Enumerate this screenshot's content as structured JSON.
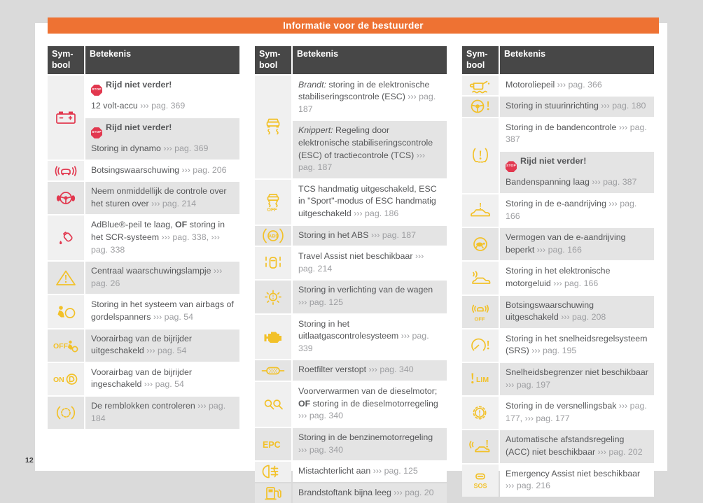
{
  "page": {
    "title": "Informatie voor de bestuurder",
    "page_number": "12"
  },
  "colors": {
    "accent_orange": "#ee7233",
    "header_gray": "#474747",
    "icon_red": "#e2384f",
    "icon_yellow": "#f2c129",
    "text_gray": "#57585a",
    "reference_gray": "#9d9ea1",
    "row_gray": "#e4e4e4",
    "symbol_cell_gray": "#f0f0f0",
    "canvas_gray": "#dadada"
  },
  "stop_badge_label": "STOP",
  "tables": [
    {
      "header": {
        "symbol": "Sym-\nbool",
        "betekenis": "Betekenis"
      },
      "rows": [
        {
          "icon": "battery-icon",
          "color": "red",
          "cells": [
            {
              "bg": "white",
              "paras": [
                [
                  {
                    "s": "stop"
                  },
                  {
                    "s": "b",
                    "t": "Rijd niet verder!"
                  }
                ],
                [
                  {
                    "s": "n",
                    "t": "12 volt-accu "
                  },
                  {
                    "s": "r",
                    "t": "››› pag. 369"
                  }
                ]
              ]
            },
            {
              "bg": "gray",
              "paras": [
                [
                  {
                    "s": "stop"
                  },
                  {
                    "s": "b",
                    "t": "Rijd niet verder!"
                  }
                ],
                [
                  {
                    "s": "n",
                    "t": "Storing in dynamo "
                  },
                  {
                    "s": "r",
                    "t": "››› pag. 369"
                  }
                ]
              ]
            }
          ]
        },
        {
          "icon": "collision-warning-icon",
          "color": "red",
          "cells": [
            {
              "bg": "white",
              "paras": [
                [
                  {
                    "s": "n",
                    "t": "Botsingswaarschuwing "
                  },
                  {
                    "s": "r",
                    "t": "››› pag. 206"
                  }
                ]
              ]
            }
          ]
        },
        {
          "icon": "hands-on-steering-icon",
          "color": "red",
          "cells": [
            {
              "bg": "gray",
              "paras": [
                [
                  {
                    "s": "n",
                    "t": "Neem onmiddellijk de controle over het sturen over "
                  },
                  {
                    "s": "r",
                    "t": "››› pag. 214"
                  }
                ]
              ]
            }
          ]
        },
        {
          "icon": "adblue-icon",
          "color": "red",
          "cells": [
            {
              "bg": "white",
              "paras": [
                [
                  {
                    "s": "n",
                    "t": "AdBlue®-peil te laag, "
                  },
                  {
                    "s": "b",
                    "t": "OF"
                  },
                  {
                    "s": "n",
                    "t": " storing in het SCR-systeem "
                  },
                  {
                    "s": "r",
                    "t": "››› pag. 338,"
                  },
                  {
                    "s": "n",
                    "t": " "
                  },
                  {
                    "s": "r",
                    "t": "››› pag. 338"
                  }
                ]
              ]
            }
          ]
        },
        {
          "icon": "warning-triangle-icon",
          "color": "yellow",
          "cells": [
            {
              "bg": "gray",
              "paras": [
                [
                  {
                    "s": "n",
                    "t": "Centraal waarschuwingslampje "
                  },
                  {
                    "s": "r",
                    "t": "››› pag. 26"
                  }
                ]
              ]
            }
          ]
        },
        {
          "icon": "airbag-icon",
          "color": "yellow",
          "cells": [
            {
              "bg": "white",
              "paras": [
                [
                  {
                    "s": "n",
                    "t": "Storing in het systeem van airbags of gordelspanners "
                  },
                  {
                    "s": "r",
                    "t": "››› pag. 54"
                  }
                ]
              ]
            }
          ]
        },
        {
          "icon": "airbag-off-icon",
          "color": "yellow",
          "cells": [
            {
              "bg": "gray",
              "paras": [
                [
                  {
                    "s": "n",
                    "t": "Voorairbag van de bijrijder uitgeschakeld "
                  },
                  {
                    "s": "r",
                    "t": "››› pag. 54"
                  }
                ]
              ]
            }
          ]
        },
        {
          "icon": "airbag-on-icon",
          "color": "yellow",
          "cells": [
            {
              "bg": "white",
              "paras": [
                [
                  {
                    "s": "n",
                    "t": "Voorairbag van de bijrijder ingeschakeld "
                  },
                  {
                    "s": "r",
                    "t": "››› pag. 54"
                  }
                ]
              ]
            }
          ]
        },
        {
          "icon": "brake-pads-icon",
          "color": "yellow",
          "cells": [
            {
              "bg": "gray",
              "paras": [
                [
                  {
                    "s": "n",
                    "t": "De remblokken controleren "
                  },
                  {
                    "s": "r",
                    "t": "››› pag. 184"
                  }
                ]
              ]
            }
          ]
        }
      ]
    },
    {
      "header": {
        "symbol": "Sym-\nbool",
        "betekenis": "Betekenis"
      },
      "rows": [
        {
          "icon": "esc-icon",
          "color": "yellow",
          "cells": [
            {
              "bg": "white",
              "paras": [
                [
                  {
                    "s": "i",
                    "t": "Brandt:"
                  },
                  {
                    "s": "n",
                    "t": " storing in de elektronische stabiliseringscontrole (ESC) "
                  },
                  {
                    "s": "r",
                    "t": "››› pag. 187"
                  }
                ]
              ]
            },
            {
              "bg": "gray",
              "paras": [
                [
                  {
                    "s": "i",
                    "t": "Knippert:"
                  },
                  {
                    "s": "n",
                    "t": " Regeling door elektronische stabiliseringscontrole (ESC) of tractiecontrole (TCS) "
                  },
                  {
                    "s": "r",
                    "t": "››› pag. 187"
                  }
                ]
              ]
            }
          ]
        },
        {
          "icon": "tcs-off-icon",
          "color": "yellow",
          "cells": [
            {
              "bg": "white",
              "paras": [
                [
                  {
                    "s": "n",
                    "t": "TCS handmatig uitgeschakeld, ESC in \"Sport\"-modus of ESC handmatig uitgeschakeld "
                  },
                  {
                    "s": "r",
                    "t": "››› pag. 186"
                  }
                ]
              ]
            }
          ]
        },
        {
          "icon": "abs-icon",
          "color": "yellow",
          "cells": [
            {
              "bg": "gray",
              "paras": [
                [
                  {
                    "s": "n",
                    "t": "Storing in het ABS "
                  },
                  {
                    "s": "r",
                    "t": "››› pag. 187"
                  }
                ]
              ]
            }
          ]
        },
        {
          "icon": "travel-assist-icon",
          "color": "yellow",
          "cells": [
            {
              "bg": "white",
              "paras": [
                [
                  {
                    "s": "n",
                    "t": "Travel Assist niet beschikbaar "
                  },
                  {
                    "s": "r",
                    "t": "››› pag. 214"
                  }
                ]
              ]
            }
          ]
        },
        {
          "icon": "light-warning-icon",
          "color": "yellow",
          "cells": [
            {
              "bg": "gray",
              "paras": [
                [
                  {
                    "s": "n",
                    "t": "Storing in verlichting van de wagen "
                  },
                  {
                    "s": "r",
                    "t": "››› pag. 125"
                  }
                ]
              ]
            }
          ]
        },
        {
          "icon": "engine-icon",
          "color": "yellow",
          "cells": [
            {
              "bg": "white",
              "paras": [
                [
                  {
                    "s": "n",
                    "t": "Storing in het uitlaatgascontrolesysteem "
                  },
                  {
                    "s": "r",
                    "t": "››› pag. 339"
                  }
                ]
              ]
            }
          ]
        },
        {
          "icon": "particulate-filter-icon",
          "color": "yellow",
          "cells": [
            {
              "bg": "gray",
              "paras": [
                [
                  {
                    "s": "n",
                    "t": "Roetfilter verstopt "
                  },
                  {
                    "s": "r",
                    "t": "››› pag. 340"
                  }
                ]
              ]
            }
          ]
        },
        {
          "icon": "glow-plug-icon",
          "color": "yellow",
          "cells": [
            {
              "bg": "white",
              "paras": [
                [
                  {
                    "s": "n",
                    "t": "Voorverwarmen van de dieselmotor; "
                  },
                  {
                    "s": "b",
                    "t": "OF"
                  },
                  {
                    "s": "n",
                    "t": " storing in de dieselmotorregeling "
                  },
                  {
                    "s": "r",
                    "t": "››› pag. 340"
                  }
                ]
              ]
            }
          ]
        },
        {
          "icon": "epc-icon",
          "color": "yellow",
          "cells": [
            {
              "bg": "gray",
              "paras": [
                [
                  {
                    "s": "n",
                    "t": "Storing in de benzinemotorregeling "
                  },
                  {
                    "s": "r",
                    "t": "››› pag. 340"
                  }
                ]
              ]
            }
          ]
        },
        {
          "icon": "rear-fog-light-icon",
          "color": "yellow",
          "cells": [
            {
              "bg": "white",
              "paras": [
                [
                  {
                    "s": "n",
                    "t": "Mistachterlicht aan "
                  },
                  {
                    "s": "r",
                    "t": "››› pag. 125"
                  }
                ]
              ]
            }
          ]
        },
        {
          "icon": "fuel-pump-icon",
          "color": "yellow",
          "cells": [
            {
              "bg": "gray",
              "paras": [
                [
                  {
                    "s": "n",
                    "t": "Brandstoftank bijna leeg "
                  },
                  {
                    "s": "r",
                    "t": "››› pag. 20"
                  }
                ]
              ]
            }
          ]
        }
      ]
    },
    {
      "header": {
        "symbol": "Sym-\nbool",
        "betekenis": "Betekenis"
      },
      "rows": [
        {
          "icon": "engine-oil-icon",
          "color": "yellow",
          "cells": [
            {
              "bg": "white",
              "paras": [
                [
                  {
                    "s": "n",
                    "t": "Motoroliepeil "
                  },
                  {
                    "s": "r",
                    "t": "››› pag. 366"
                  }
                ]
              ]
            }
          ]
        },
        {
          "icon": "steering-warning-icon",
          "color": "yellow",
          "cells": [
            {
              "bg": "gray",
              "paras": [
                [
                  {
                    "s": "n",
                    "t": "Storing in stuurinrichting "
                  },
                  {
                    "s": "r",
                    "t": "››› pag. 180"
                  }
                ]
              ]
            }
          ]
        },
        {
          "icon": "tire-pressure-icon",
          "color": "yellow",
          "cells": [
            {
              "bg": "white",
              "paras": [
                [
                  {
                    "s": "n",
                    "t": "Storing in de bandencontrole "
                  },
                  {
                    "s": "r",
                    "t": "››› pag. 387"
                  }
                ]
              ]
            },
            {
              "bg": "gray",
              "paras": [
                [
                  {
                    "s": "stop"
                  },
                  {
                    "s": "b",
                    "t": "Rijd niet verder!"
                  }
                ],
                [
                  {
                    "s": "n",
                    "t": "Bandenspanning laag "
                  },
                  {
                    "s": "r",
                    "t": "››› pag. 387"
                  }
                ]
              ]
            }
          ]
        },
        {
          "icon": "e-drive-warning-icon",
          "color": "yellow",
          "cells": [
            {
              "bg": "white",
              "paras": [
                [
                  {
                    "s": "n",
                    "t": "Storing in de e-aandrijving "
                  },
                  {
                    "s": "r",
                    "t": "››› pag. 166"
                  }
                ]
              ]
            }
          ]
        },
        {
          "icon": "reduced-power-turtle-icon",
          "color": "yellow",
          "cells": [
            {
              "bg": "gray",
              "paras": [
                [
                  {
                    "s": "n",
                    "t": "Vermogen van de e-aandrijving beperkt "
                  },
                  {
                    "s": "r",
                    "t": "››› pag. 166"
                  }
                ]
              ]
            }
          ]
        },
        {
          "icon": "engine-sound-icon",
          "color": "yellow",
          "cells": [
            {
              "bg": "white",
              "paras": [
                [
                  {
                    "s": "n",
                    "t": "Storing in het elektronische motorgeluid "
                  },
                  {
                    "s": "r",
                    "t": "››› pag. 166"
                  }
                ]
              ]
            }
          ]
        },
        {
          "icon": "collision-warning-off-icon",
          "color": "yellow",
          "cells": [
            {
              "bg": "gray",
              "paras": [
                [
                  {
                    "s": "n",
                    "t": "Botsingswaarschuwing uitgeschakeld "
                  },
                  {
                    "s": "r",
                    "t": "››› pag. 208"
                  }
                ]
              ]
            }
          ]
        },
        {
          "icon": "cruise-control-warning-icon",
          "color": "yellow",
          "cells": [
            {
              "bg": "white",
              "paras": [
                [
                  {
                    "s": "n",
                    "t": "Storing in het snelheidsregelsysteem (SRS) "
                  },
                  {
                    "s": "r",
                    "t": "››› pag. 195"
                  }
                ]
              ]
            }
          ]
        },
        {
          "icon": "speed-limiter-icon",
          "color": "yellow",
          "cells": [
            {
              "bg": "gray",
              "paras": [
                [
                  {
                    "s": "n",
                    "t": "Snelheidsbegrenzer niet beschikbaar "
                  },
                  {
                    "s": "r",
                    "t": "››› pag. 197"
                  }
                ]
              ]
            }
          ]
        },
        {
          "icon": "gearbox-warning-icon",
          "color": "yellow",
          "cells": [
            {
              "bg": "white",
              "paras": [
                [
                  {
                    "s": "n",
                    "t": "Storing in de versnellingsbak "
                  },
                  {
                    "s": "r",
                    "t": "››› pag. 177,"
                  },
                  {
                    "s": "n",
                    "t": " "
                  },
                  {
                    "s": "r",
                    "t": "››› pag. 177"
                  }
                ]
              ]
            }
          ]
        },
        {
          "icon": "acc-warning-icon",
          "color": "yellow",
          "cells": [
            {
              "bg": "gray",
              "paras": [
                [
                  {
                    "s": "n",
                    "t": "Automatische afstandsregeling (ACC) niet beschikbaar "
                  },
                  {
                    "s": "r",
                    "t": "››› pag. 202"
                  }
                ]
              ]
            }
          ]
        },
        {
          "icon": "emergency-assist-icon",
          "color": "yellow",
          "cells": [
            {
              "bg": "white",
              "paras": [
                [
                  {
                    "s": "n",
                    "t": "Emergency Assist niet beschikbaar "
                  },
                  {
                    "s": "r",
                    "t": "››› pag. 216"
                  }
                ]
              ]
            }
          ]
        }
      ]
    }
  ]
}
